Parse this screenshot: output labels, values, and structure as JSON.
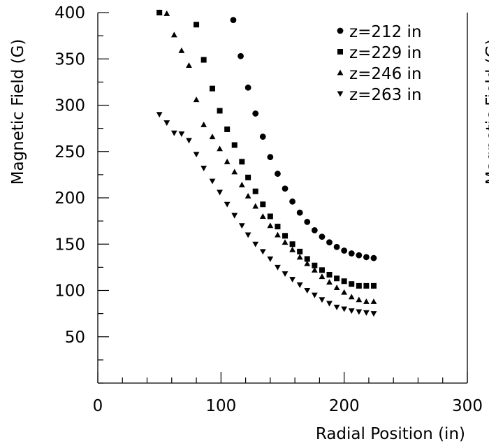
{
  "chart_data": {
    "type": "scatter",
    "xlabel": "Radial Position (in)",
    "ylabel": "Magnetic Field (G)",
    "right_ylabel_fragment": "Magnetic Field (G)",
    "xlim": [
      0,
      300
    ],
    "ylim": [
      0,
      400
    ],
    "x_ticks": [
      0,
      100,
      200,
      300
    ],
    "y_ticks": [
      50,
      100,
      150,
      200,
      250,
      300,
      350,
      400
    ],
    "grid": false,
    "legend_position": "top-right",
    "series": [
      {
        "name": "z=212 in",
        "marker": "circle",
        "x": [
          110,
          116,
          122,
          128,
          134,
          140,
          146,
          152,
          158,
          164,
          170,
          176,
          182,
          188,
          194,
          200,
          206,
          212,
          218,
          224
        ],
        "y": [
          392,
          353,
          319,
          291,
          266,
          244,
          226,
          210,
          196,
          184,
          174,
          165,
          158,
          152,
          147,
          143,
          140,
          138,
          136,
          135
        ]
      },
      {
        "name": "z=229 in",
        "marker": "square",
        "x": [
          50,
          80,
          86,
          93,
          99,
          105,
          111,
          117,
          122,
          128,
          134,
          140,
          146,
          152,
          158,
          164,
          170,
          176,
          182,
          188,
          194,
          200,
          206,
          212,
          218,
          224
        ],
        "y": [
          400,
          387,
          349,
          318,
          294,
          274,
          257,
          239,
          222,
          207,
          193,
          180,
          169,
          159,
          150,
          142,
          134,
          127,
          122,
          117,
          113,
          110,
          107,
          105,
          105,
          105
        ]
      },
      {
        "name": "z=246 in",
        "marker": "triangle-up",
        "x": [
          50,
          56,
          62,
          68,
          74,
          80,
          86,
          93,
          99,
          105,
          111,
          117,
          122,
          128,
          134,
          140,
          146,
          152,
          158,
          164,
          170,
          176,
          182,
          188,
          194,
          200,
          206,
          212,
          218,
          224
        ],
        "y": [
          400,
          399,
          376,
          359,
          343,
          306,
          279,
          266,
          253,
          239,
          228,
          214,
          202,
          191,
          180,
          170,
          160,
          152,
          144,
          136,
          129,
          122,
          115,
          109,
          103,
          98,
          93,
          90,
          88,
          88
        ]
      },
      {
        "name": "z=263 in",
        "marker": "triangle-down",
        "x": [
          50,
          56,
          62,
          68,
          74,
          80,
          86,
          93,
          99,
          105,
          111,
          117,
          122,
          128,
          134,
          140,
          146,
          152,
          158,
          164,
          170,
          176,
          182,
          188,
          194,
          200,
          206,
          212,
          218,
          224
        ],
        "y": [
          290,
          281,
          270,
          269,
          262,
          247,
          232,
          218,
          206,
          193,
          181,
          170,
          160,
          150,
          142,
          134,
          125,
          118,
          112,
          106,
          100,
          95,
          90,
          86,
          82,
          80,
          78,
          77,
          76,
          75
        ]
      }
    ]
  }
}
